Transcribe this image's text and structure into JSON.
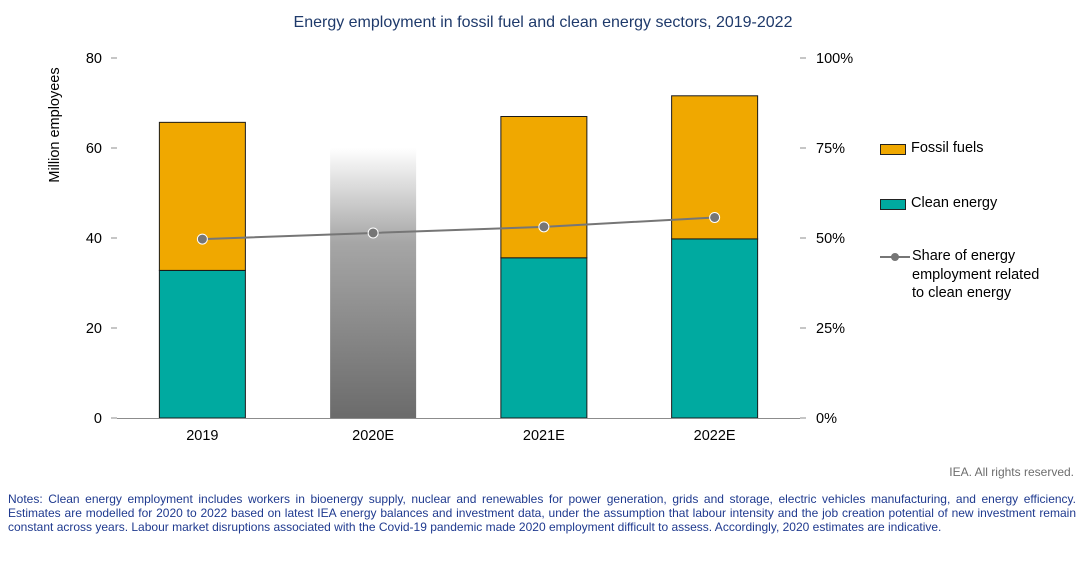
{
  "title": "Energy employment in fossil fuel and clean energy sectors, 2019-2022",
  "credit": "IEA. All rights reserved.",
  "notes": "Notes: Clean energy employment includes workers in bioenergy supply, nuclear and renewables for power generation, grids and storage, electric vehicles manufacturing, and energy efficiency. Estimates are modelled for 2020 to 2022 based on latest IEA energy balances and investment data, under the assumption that labour intensity and the job creation potential of new investment remain constant across years. Labour market disruptions associated with the Covid-19 pandemic made 2020 employment difficult to assess. Accordingly, 2020 estimates are indicative.",
  "legend": {
    "fossil": "Fossil fuels",
    "clean": "Clean energy",
    "share_lines": [
      "Share of energy",
      "employment related",
      "to clean energy"
    ]
  },
  "colors": {
    "fossil": "#f0a800",
    "clean": "#00aaa0",
    "share_line": "#767676",
    "title": "#1f3a6b",
    "notes": "#1f3a8f"
  },
  "chart_data": {
    "type": "bar",
    "stacked": true,
    "categories": [
      "2019",
      "2020E",
      "2021E",
      "2022E"
    ],
    "ylabel": "Million employees",
    "ylim": [
      0,
      80
    ],
    "yticks": [
      "0",
      "20",
      "40",
      "60",
      "80"
    ],
    "y2lim": [
      0,
      100
    ],
    "y2ticks": [
      "0%",
      "25%",
      "50%",
      "75%",
      "100%"
    ],
    "series": [
      {
        "name": "Clean energy",
        "values": [
          32.8,
          null,
          35.6,
          39.8
        ]
      },
      {
        "name": "Fossil fuels",
        "values": [
          32.9,
          null,
          31.4,
          31.8
        ]
      },
      {
        "name": "Share of energy employment related to clean energy",
        "axis": "right",
        "type": "line",
        "values": [
          49.7,
          51.4,
          53.1,
          55.7
        ]
      }
    ],
    "indicative": {
      "category": "2020E",
      "total": 60,
      "style": "gradient-grey"
    },
    "legend_position": "right",
    "grid": false
  }
}
